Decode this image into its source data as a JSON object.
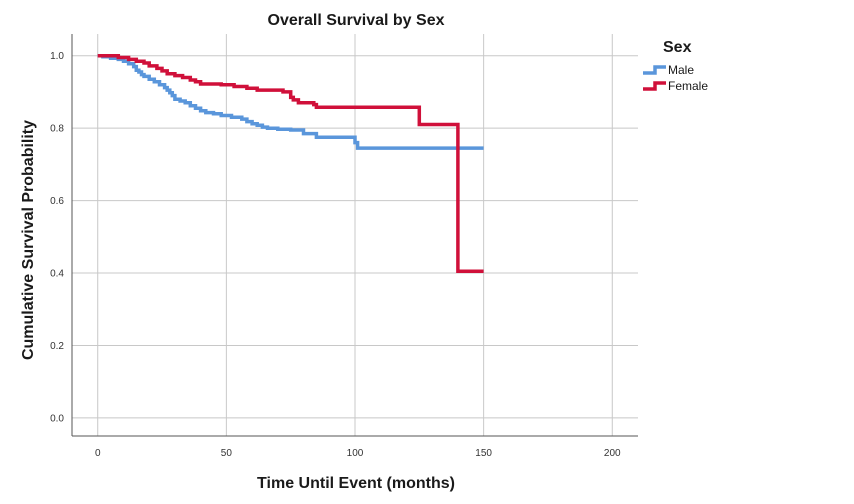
{
  "chart_data": {
    "type": "line",
    "title": "Overall Survival by Sex",
    "xlabel": "Time Until Event (months)",
    "ylabel": "Cumulative Survival Probability",
    "xlim": [
      -10,
      210
    ],
    "ylim": [
      -0.05,
      1.06
    ],
    "xticks": [
      0,
      50,
      100,
      150,
      200
    ],
    "yticks": [
      0.0,
      0.2,
      0.4,
      0.6,
      0.8,
      1.0
    ],
    "xtick_labels": [
      "0",
      "50",
      "100",
      "150",
      "200"
    ],
    "ytick_labels": [
      "0.0",
      "0.2",
      "0.4",
      "0.6",
      "0.8",
      "1.0"
    ],
    "grid": true,
    "step": true,
    "legend": {
      "title": "Sex",
      "position": "right"
    },
    "series": [
      {
        "name": "Male",
        "color": "#5a96db",
        "points": [
          [
            0,
            1.0
          ],
          [
            2,
            0.997
          ],
          [
            5,
            0.993
          ],
          [
            8,
            0.99
          ],
          [
            10,
            0.985
          ],
          [
            12,
            0.978
          ],
          [
            14,
            0.97
          ],
          [
            15,
            0.96
          ],
          [
            16,
            0.955
          ],
          [
            17,
            0.948
          ],
          [
            18,
            0.943
          ],
          [
            20,
            0.935
          ],
          [
            22,
            0.928
          ],
          [
            24,
            0.92
          ],
          [
            26,
            0.912
          ],
          [
            27,
            0.905
          ],
          [
            28,
            0.898
          ],
          [
            29,
            0.89
          ],
          [
            30,
            0.88
          ],
          [
            32,
            0.875
          ],
          [
            34,
            0.87
          ],
          [
            36,
            0.862
          ],
          [
            38,
            0.855
          ],
          [
            40,
            0.848
          ],
          [
            42,
            0.843
          ],
          [
            45,
            0.84
          ],
          [
            48,
            0.835
          ],
          [
            52,
            0.83
          ],
          [
            56,
            0.825
          ],
          [
            58,
            0.818
          ],
          [
            60,
            0.812
          ],
          [
            62,
            0.808
          ],
          [
            64,
            0.803
          ],
          [
            66,
            0.8
          ],
          [
            70,
            0.797
          ],
          [
            75,
            0.795
          ],
          [
            80,
            0.785
          ],
          [
            85,
            0.775
          ],
          [
            90,
            0.775
          ],
          [
            95,
            0.775
          ],
          [
            100,
            0.76
          ],
          [
            101,
            0.745
          ],
          [
            150,
            0.745
          ]
        ]
      },
      {
        "name": "Female",
        "color": "#d0103a",
        "points": [
          [
            0,
            1.0
          ],
          [
            8,
            0.995
          ],
          [
            12,
            0.99
          ],
          [
            15,
            0.985
          ],
          [
            18,
            0.98
          ],
          [
            20,
            0.972
          ],
          [
            23,
            0.965
          ],
          [
            25,
            0.958
          ],
          [
            27,
            0.95
          ],
          [
            30,
            0.945
          ],
          [
            33,
            0.94
          ],
          [
            36,
            0.933
          ],
          [
            38,
            0.928
          ],
          [
            40,
            0.922
          ],
          [
            48,
            0.92
          ],
          [
            53,
            0.915
          ],
          [
            58,
            0.91
          ],
          [
            62,
            0.905
          ],
          [
            68,
            0.905
          ],
          [
            72,
            0.9
          ],
          [
            75,
            0.885
          ],
          [
            76,
            0.878
          ],
          [
            78,
            0.87
          ],
          [
            84,
            0.865
          ],
          [
            85,
            0.858
          ],
          [
            125,
            0.81
          ],
          [
            140,
            0.405
          ],
          [
            150,
            0.405
          ]
        ]
      }
    ]
  }
}
